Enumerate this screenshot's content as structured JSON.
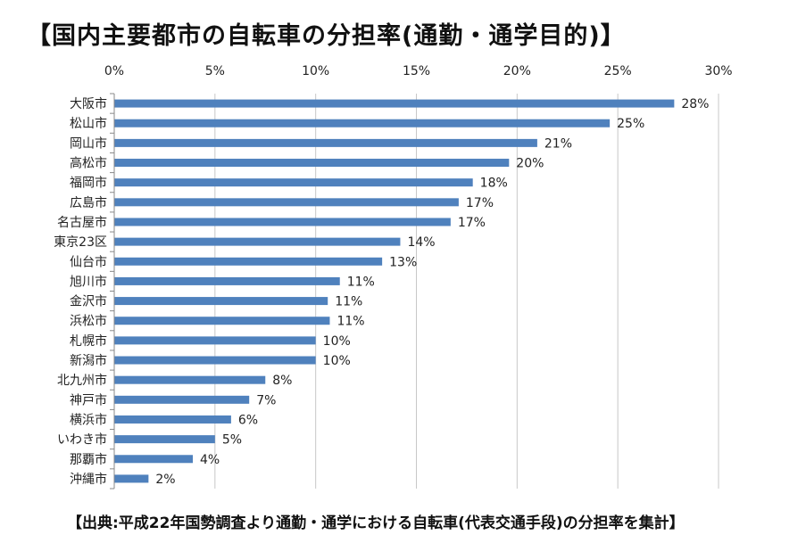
{
  "title": "【国内主要都市の自転車の分担率(通勤・通学目的)】",
  "source": "【出典:平成22年国勢調査より通勤・通学における自転車(代表交通手段)の分担率を集計】",
  "colors": {
    "bar": "#4f81bd",
    "grid": "#c8c8c8",
    "axis": "#888888"
  },
  "chart_data": {
    "type": "bar",
    "orientation": "horizontal",
    "title": "【国内主要都市の自転車の分担率(通勤・通学目的)】",
    "xlim": [
      0,
      30
    ],
    "x_ticks": [
      "0%",
      "5%",
      "10%",
      "15%",
      "20%",
      "25%",
      "30%"
    ],
    "x_tick_values": [
      0,
      5,
      10,
      15,
      20,
      25,
      30
    ],
    "categories": [
      "大阪市",
      "松山市",
      "岡山市",
      "高松市",
      "福岡市",
      "広島市",
      "名古屋市",
      "東京23区",
      "仙台市",
      "旭川市",
      "金沢市",
      "浜松市",
      "札幌市",
      "新潟市",
      "北九州市",
      "神戸市",
      "横浜市",
      "いわき市",
      "那覇市",
      "沖縄市"
    ],
    "values": [
      27.8,
      24.6,
      21.0,
      19.6,
      17.8,
      17.1,
      16.7,
      14.2,
      13.3,
      11.2,
      10.6,
      10.7,
      10.0,
      10.0,
      7.5,
      6.7,
      5.8,
      5.0,
      3.9,
      1.7
    ],
    "data_labels": [
      "28%",
      "25%",
      "21%",
      "20%",
      "18%",
      "17%",
      "17%",
      "14%",
      "13%",
      "11%",
      "11%",
      "11%",
      "10%",
      "10%",
      "8%",
      "7%",
      "6%",
      "5%",
      "4%",
      "2%"
    ],
    "grid": true,
    "legend": "none"
  }
}
